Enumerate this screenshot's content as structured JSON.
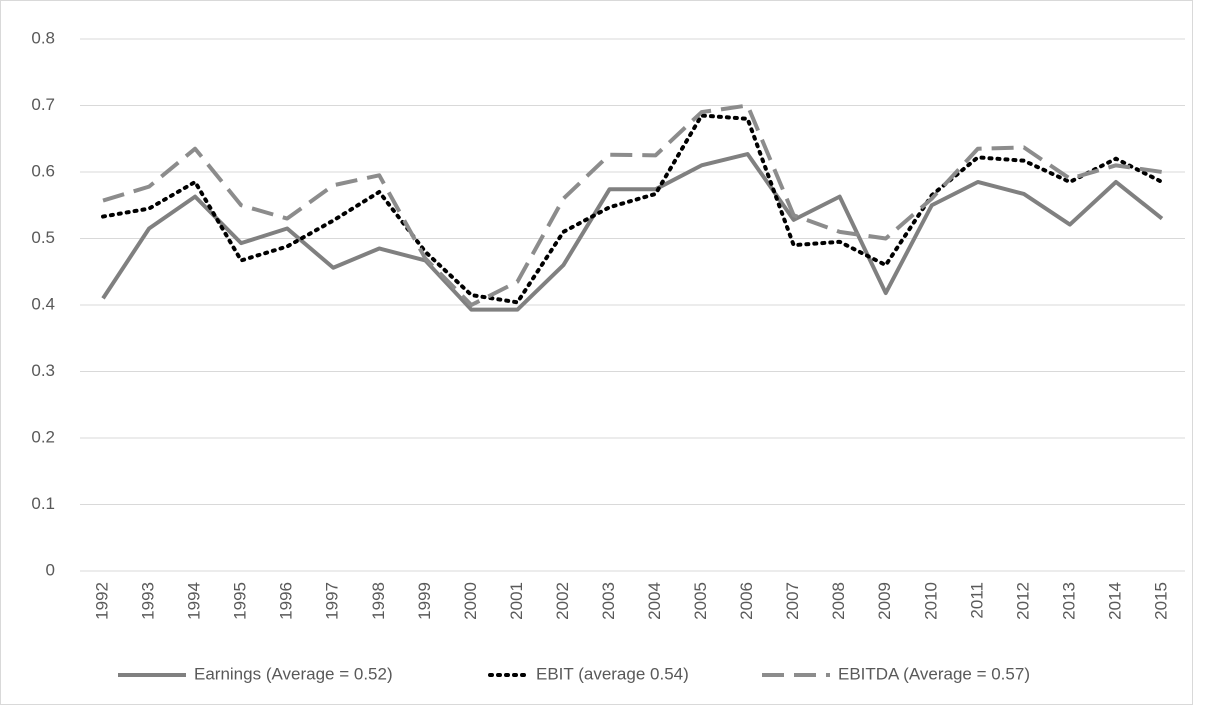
{
  "chart_data": {
    "type": "line",
    "categories": [
      "1992",
      "1993",
      "1994",
      "1995",
      "1996",
      "1997",
      "1998",
      "1999",
      "2000",
      "2001",
      "2002",
      "2003",
      "2004",
      "2005",
      "2006",
      "2007",
      "2008",
      "2009",
      "2010",
      "2011",
      "2012",
      "2013",
      "2014",
      "2015"
    ],
    "series": [
      {
        "name": "Earnings (Average = 0.52)",
        "color": "#808080",
        "dash": "solid",
        "values": [
          0.41,
          0.515,
          0.563,
          0.493,
          0.515,
          0.456,
          0.485,
          0.467,
          0.393,
          0.393,
          0.46,
          0.574,
          0.574,
          0.61,
          0.627,
          0.528,
          0.563,
          0.418,
          0.55,
          0.585,
          0.567,
          0.521,
          0.585,
          0.53
        ]
      },
      {
        "name": "EBIT (average 0.54)",
        "color": "#000000",
        "dash": "dotted",
        "values": [
          0.533,
          0.545,
          0.585,
          0.467,
          0.488,
          0.527,
          0.57,
          0.48,
          0.415,
          0.404,
          0.51,
          0.547,
          0.567,
          0.685,
          0.68,
          0.49,
          0.495,
          0.46,
          0.565,
          0.622,
          0.617,
          0.585,
          0.62,
          0.585
        ]
      },
      {
        "name": "EBITDA (Average = 0.57)",
        "color": "#8c8c8c",
        "dash": "dashed",
        "values": [
          0.557,
          0.578,
          0.635,
          0.55,
          0.53,
          0.58,
          0.595,
          0.47,
          0.4,
          0.435,
          0.56,
          0.626,
          0.625,
          0.69,
          0.7,
          0.535,
          0.51,
          0.5,
          0.56,
          0.635,
          0.637,
          0.59,
          0.61,
          0.6
        ]
      }
    ],
    "ylim": [
      0,
      0.8
    ],
    "yticks": [
      0,
      0.1,
      0.2,
      0.3,
      0.4,
      0.5,
      0.6,
      0.7,
      0.8
    ],
    "grid": true,
    "legend": "bottom"
  }
}
